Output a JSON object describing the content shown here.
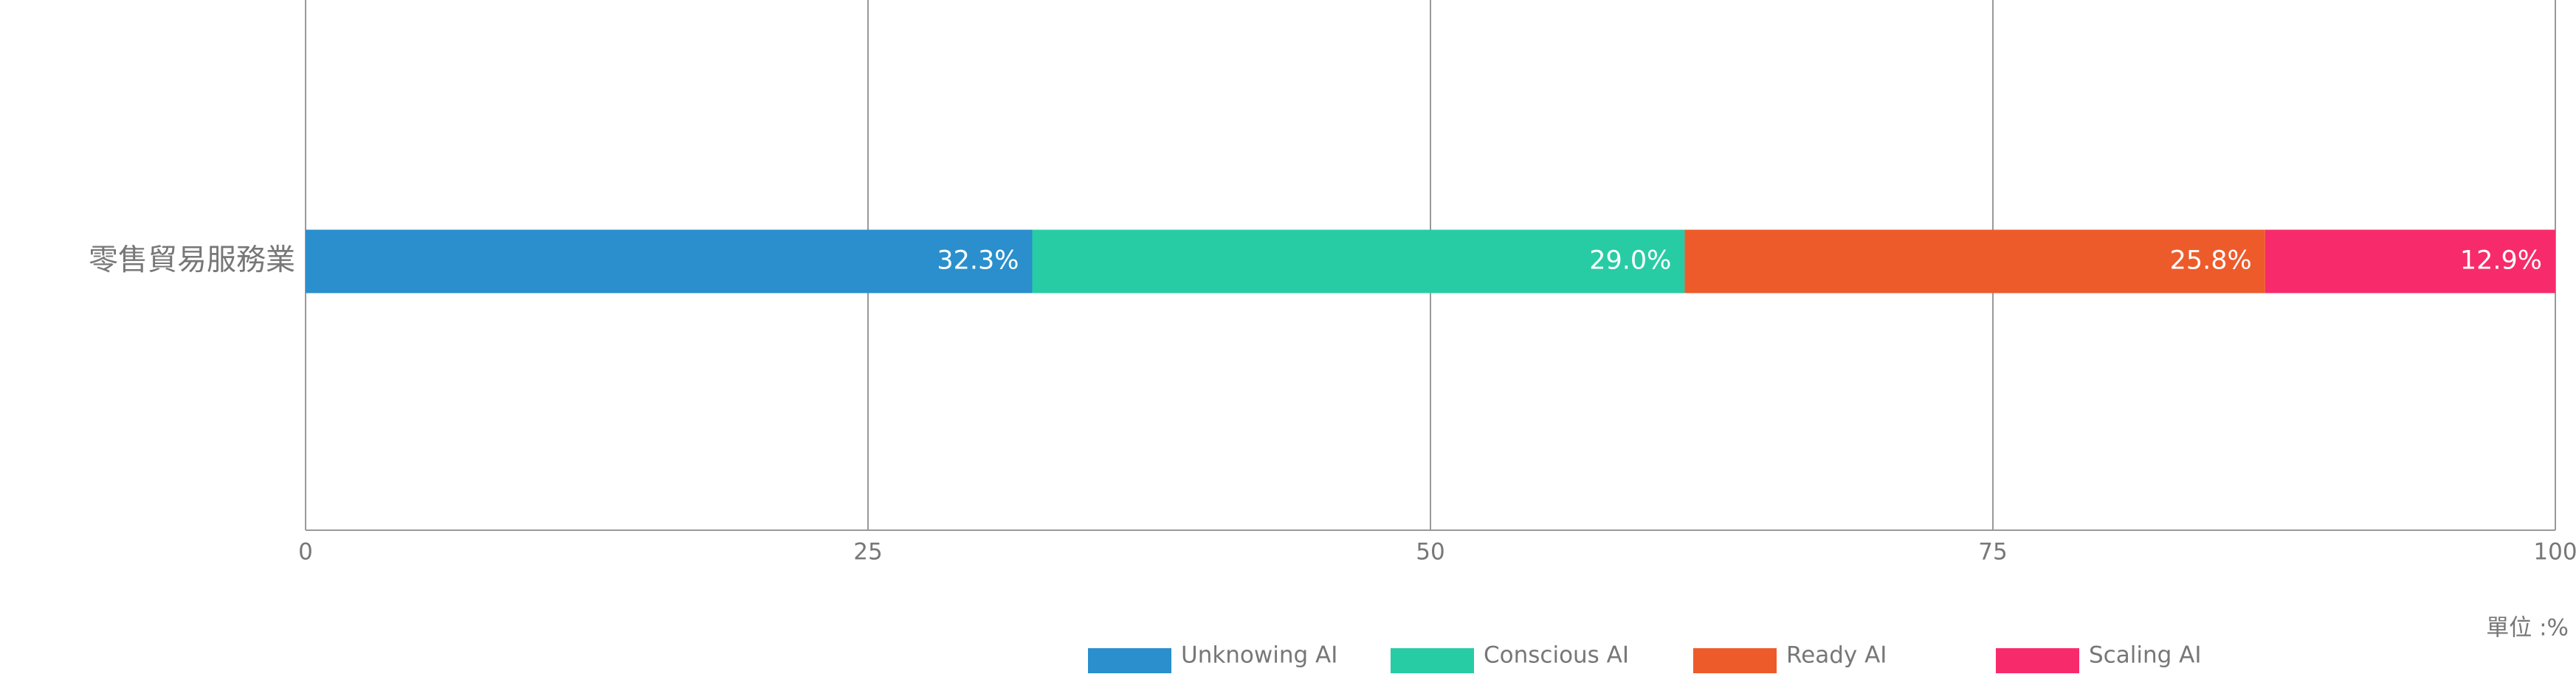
{
  "chart_data": {
    "type": "bar",
    "orientation": "horizontal",
    "stacked": true,
    "categories": [
      "零售貿易服務業"
    ],
    "series": [
      {
        "name": "Unknowing AI",
        "color": "#2a8fcc",
        "values": [
          32.3
        ],
        "value_labels": [
          "32.3%"
        ]
      },
      {
        "name": "Conscious AI",
        "color": "#27cca5",
        "values": [
          29.0
        ],
        "value_labels": [
          "29.0%"
        ]
      },
      {
        "name": "Ready AI",
        "color": "#ee5b2b",
        "values": [
          25.8
        ],
        "value_labels": [
          "25.8%"
        ]
      },
      {
        "name": "Scaling AI",
        "color": "#f72b6b",
        "values": [
          12.9
        ],
        "value_labels": [
          "12.9%"
        ]
      }
    ],
    "xlim": [
      0,
      100
    ],
    "xticks": [
      0,
      25,
      50,
      75,
      100
    ],
    "grid": true,
    "annotation": "單位 :%",
    "legend": "bottom"
  }
}
